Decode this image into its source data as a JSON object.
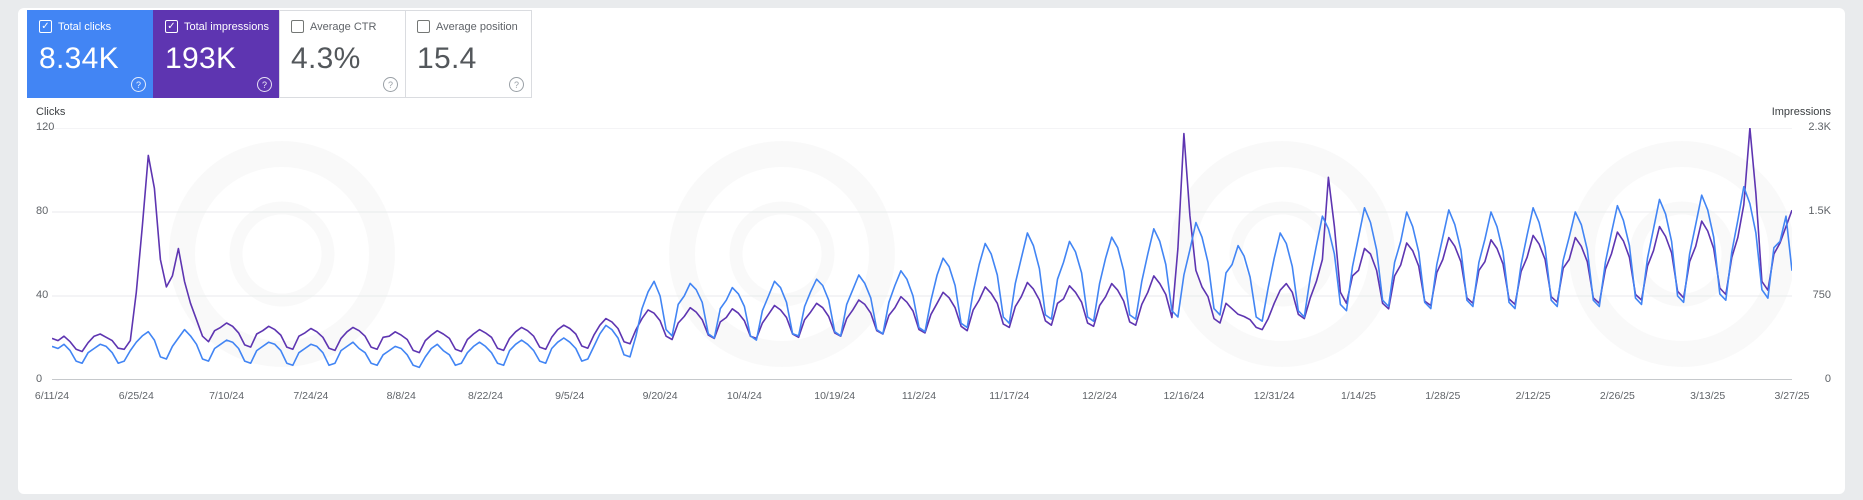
{
  "ui": {
    "checkbox_check": "✓",
    "help_glyph": "?"
  },
  "cards": [
    {
      "id": "clicks",
      "label": "Total clicks",
      "value": "8.34K",
      "checked": true,
      "color": "#4285f4"
    },
    {
      "id": "impressions",
      "label": "Total impressions",
      "value": "193K",
      "checked": true,
      "color": "#5e35b1"
    },
    {
      "id": "ctr",
      "label": "Average CTR",
      "value": "4.3%",
      "checked": false,
      "color": ""
    },
    {
      "id": "position",
      "label": "Average position",
      "value": "15.4",
      "checked": false,
      "color": ""
    }
  ],
  "chart_data": {
    "type": "line",
    "grid": true,
    "days_span": 289,
    "left_axis": {
      "label": "Clicks",
      "max": 120,
      "ticks": [
        0,
        40,
        80,
        120
      ],
      "tick_labels": [
        "0",
        "40",
        "80",
        "120"
      ]
    },
    "right_axis": {
      "label": "Impressions",
      "max": 2300,
      "tick_labels": [
        "0",
        "750",
        "1.5K",
        "2.3K"
      ]
    },
    "x_ticks": [
      {
        "label": "6/11/24",
        "day": 0
      },
      {
        "label": "6/25/24",
        "day": 14
      },
      {
        "label": "7/10/24",
        "day": 29
      },
      {
        "label": "7/24/24",
        "day": 43
      },
      {
        "label": "8/8/24",
        "day": 58
      },
      {
        "label": "8/22/24",
        "day": 72
      },
      {
        "label": "9/5/24",
        "day": 86
      },
      {
        "label": "9/20/24",
        "day": 101
      },
      {
        "label": "10/4/24",
        "day": 115
      },
      {
        "label": "10/19/24",
        "day": 130
      },
      {
        "label": "11/2/24",
        "day": 144
      },
      {
        "label": "11/17/24",
        "day": 159
      },
      {
        "label": "12/2/24",
        "day": 174
      },
      {
        "label": "12/16/24",
        "day": 188
      },
      {
        "label": "12/31/24",
        "day": 203
      },
      {
        "label": "1/14/25",
        "day": 217
      },
      {
        "label": "1/28/25",
        "day": 231
      },
      {
        "label": "2/12/25",
        "day": 246
      },
      {
        "label": "2/26/25",
        "day": 260
      },
      {
        "label": "3/13/25",
        "day": 275
      },
      {
        "label": "3/27/25",
        "day": 289
      }
    ],
    "series": [
      {
        "name": "Clicks",
        "color": "#4285f4",
        "axis": "left",
        "values": [
          16,
          15,
          17,
          14,
          9,
          8,
          13,
          15,
          17,
          16,
          13,
          8,
          9,
          14,
          18,
          21,
          23,
          19,
          11,
          10,
          16,
          20,
          24,
          21,
          17,
          10,
          9,
          15,
          17,
          19,
          18,
          15,
          9,
          8,
          14,
          16,
          18,
          17,
          14,
          8,
          7,
          13,
          15,
          17,
          16,
          13,
          7,
          8,
          14,
          16,
          18,
          15,
          13,
          8,
          7,
          12,
          14,
          16,
          15,
          12,
          7,
          6,
          11,
          15,
          17,
          14,
          12,
          7,
          8,
          13,
          16,
          18,
          16,
          13,
          8,
          7,
          14,
          17,
          19,
          17,
          14,
          9,
          8,
          15,
          18,
          20,
          18,
          15,
          9,
          10,
          16,
          22,
          26,
          24,
          20,
          12,
          11,
          21,
          34,
          42,
          47,
          40,
          24,
          21,
          36,
          40,
          46,
          43,
          37,
          22,
          20,
          34,
          38,
          44,
          41,
          35,
          21,
          19,
          33,
          40,
          47,
          44,
          37,
          22,
          21,
          35,
          42,
          48,
          45,
          38,
          23,
          21,
          36,
          43,
          50,
          46,
          39,
          24,
          22,
          37,
          45,
          52,
          48,
          40,
          25,
          23,
          38,
          50,
          58,
          54,
          45,
          27,
          25,
          42,
          55,
          65,
          60,
          50,
          30,
          27,
          46,
          58,
          70,
          64,
          53,
          31,
          29,
          48,
          56,
          66,
          61,
          51,
          30,
          28,
          46,
          58,
          68,
          63,
          52,
          31,
          29,
          47,
          60,
          72,
          66,
          55,
          33,
          30,
          50,
          62,
          75,
          68,
          56,
          34,
          31,
          51,
          55,
          64,
          59,
          49,
          30,
          28,
          44,
          58,
          70,
          65,
          54,
          33,
          30,
          49,
          64,
          78,
          72,
          60,
          36,
          33,
          54,
          68,
          82,
          75,
          62,
          38,
          35,
          56,
          66,
          80,
          73,
          61,
          37,
          34,
          55,
          68,
          81,
          74,
          62,
          38,
          35,
          56,
          67,
          80,
          73,
          61,
          37,
          34,
          55,
          69,
          82,
          75,
          63,
          38,
          35,
          57,
          68,
          80,
          74,
          62,
          38,
          35,
          56,
          70,
          83,
          76,
          64,
          39,
          36,
          58,
          72,
          86,
          79,
          66,
          40,
          37,
          60,
          74,
          88,
          81,
          68,
          41,
          38,
          61,
          76,
          92,
          84,
          70,
          43,
          39,
          63,
          66,
          78,
          52
        ]
      },
      {
        "name": "Impressions",
        "color": "#5e35b1",
        "axis": "right",
        "values": [
          380,
          360,
          400,
          350,
          280,
          260,
          340,
          400,
          420,
          390,
          360,
          290,
          280,
          360,
          800,
          1400,
          2050,
          1750,
          1100,
          850,
          950,
          1200,
          900,
          700,
          550,
          400,
          350,
          450,
          480,
          520,
          490,
          430,
          320,
          300,
          420,
          450,
          490,
          460,
          410,
          300,
          280,
          400,
          430,
          470,
          440,
          390,
          290,
          270,
          380,
          440,
          480,
          450,
          400,
          300,
          280,
          390,
          400,
          440,
          410,
          370,
          270,
          250,
          360,
          410,
          450,
          420,
          380,
          280,
          260,
          370,
          420,
          460,
          430,
          390,
          290,
          270,
          380,
          440,
          480,
          450,
          400,
          300,
          280,
          390,
          460,
          500,
          470,
          420,
          310,
          290,
          410,
          500,
          560,
          530,
          470,
          350,
          330,
          460,
          560,
          640,
          610,
          540,
          400,
          370,
          520,
          580,
          660,
          620,
          550,
          410,
          380,
          530,
          570,
          650,
          610,
          540,
          400,
          380,
          520,
          600,
          680,
          640,
          570,
          420,
          390,
          550,
          620,
          700,
          660,
          580,
          430,
          400,
          560,
          640,
          730,
          690,
          610,
          450,
          420,
          590,
          660,
          760,
          710,
          630,
          460,
          430,
          600,
          700,
          800,
          750,
          660,
          490,
          450,
          640,
          730,
          850,
          790,
          700,
          510,
          480,
          670,
          760,
          890,
          830,
          730,
          540,
          500,
          700,
          740,
          860,
          800,
          710,
          520,
          490,
          680,
          760,
          880,
          820,
          720,
          530,
          500,
          690,
          800,
          950,
          880,
          780,
          570,
          1200,
          2250,
          1500,
          1000,
          850,
          760,
          560,
          520,
          700,
          650,
          600,
          580,
          550,
          480,
          460,
          560,
          700,
          820,
          880,
          800,
          600,
          560,
          750,
          900,
          1100,
          1850,
          1400,
          800,
          700,
          950,
          1000,
          1200,
          1150,
          1000,
          700,
          650,
          950,
          1050,
          1250,
          1180,
          1040,
          720,
          680,
          980,
          1100,
          1300,
          1220,
          1080,
          750,
          700,
          1000,
          1080,
          1280,
          1200,
          1060,
          740,
          690,
          990,
          1120,
          1320,
          1240,
          1100,
          760,
          710,
          1020,
          1100,
          1300,
          1220,
          1080,
          750,
          700,
          1010,
          1150,
          1350,
          1270,
          1120,
          780,
          730,
          1040,
          1180,
          1400,
          1310,
          1160,
          810,
          750,
          1080,
          1220,
          1450,
          1360,
          1200,
          840,
          780,
          1120,
          1300,
          1600,
          2300,
          1700,
          900,
          820,
          1150,
          1250,
          1400,
          1550
        ]
      }
    ]
  }
}
